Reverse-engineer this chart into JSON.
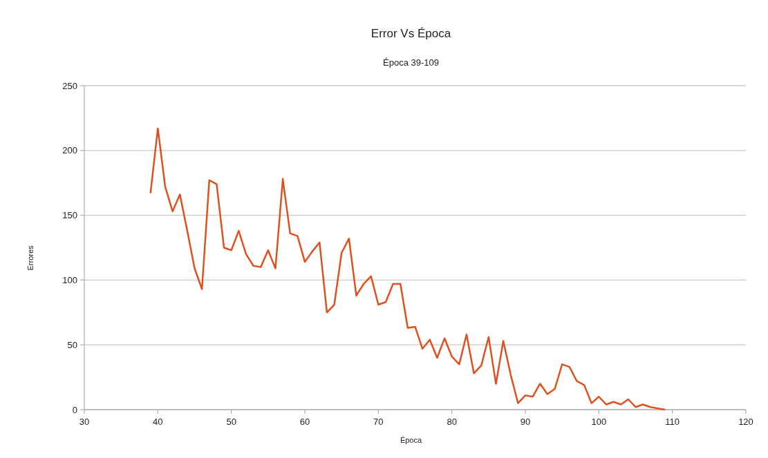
{
  "chart_data": {
    "type": "line",
    "title": "Error Vs Época",
    "subtitle": "Época 39-109",
    "xlabel": "Época",
    "ylabel": "Errores",
    "x": [
      39,
      40,
      41,
      42,
      43,
      44,
      45,
      46,
      47,
      48,
      49,
      50,
      51,
      52,
      53,
      54,
      55,
      56,
      57,
      58,
      59,
      60,
      61,
      62,
      63,
      64,
      65,
      66,
      67,
      68,
      69,
      70,
      71,
      72,
      73,
      74,
      75,
      76,
      77,
      78,
      79,
      80,
      81,
      82,
      83,
      84,
      85,
      86,
      87,
      88,
      89,
      90,
      91,
      92,
      93,
      94,
      95,
      96,
      97,
      98,
      99,
      100,
      101,
      102,
      103,
      104,
      105,
      106,
      107,
      108,
      109
    ],
    "series": [
      {
        "color": "#e0501e",
        "values": [
          167,
          217,
          172,
          153,
          166,
          138,
          109,
          93,
          177,
          174,
          125,
          123,
          138,
          120,
          111,
          110,
          123,
          109,
          178,
          136,
          134,
          114,
          122,
          129,
          75,
          81,
          121,
          132,
          88,
          97,
          103,
          81,
          83,
          97,
          97,
          63,
          64,
          47,
          54,
          40,
          55,
          41,
          35,
          58,
          28,
          34,
          56,
          20,
          53,
          27,
          5,
          11,
          10,
          20,
          12,
          16,
          35,
          33,
          22,
          19,
          5,
          10,
          4,
          6,
          4,
          8,
          2,
          4,
          2,
          1,
          0
        ]
      }
    ],
    "xlim": [
      30,
      120
    ],
    "xticks": [
      30,
      40,
      50,
      60,
      70,
      80,
      90,
      100,
      110,
      120
    ],
    "ylim": [
      0,
      250
    ],
    "yticks": [
      0,
      50,
      100,
      150,
      200,
      250
    ],
    "grid": "y",
    "marker": "none",
    "line_style": "solid"
  }
}
